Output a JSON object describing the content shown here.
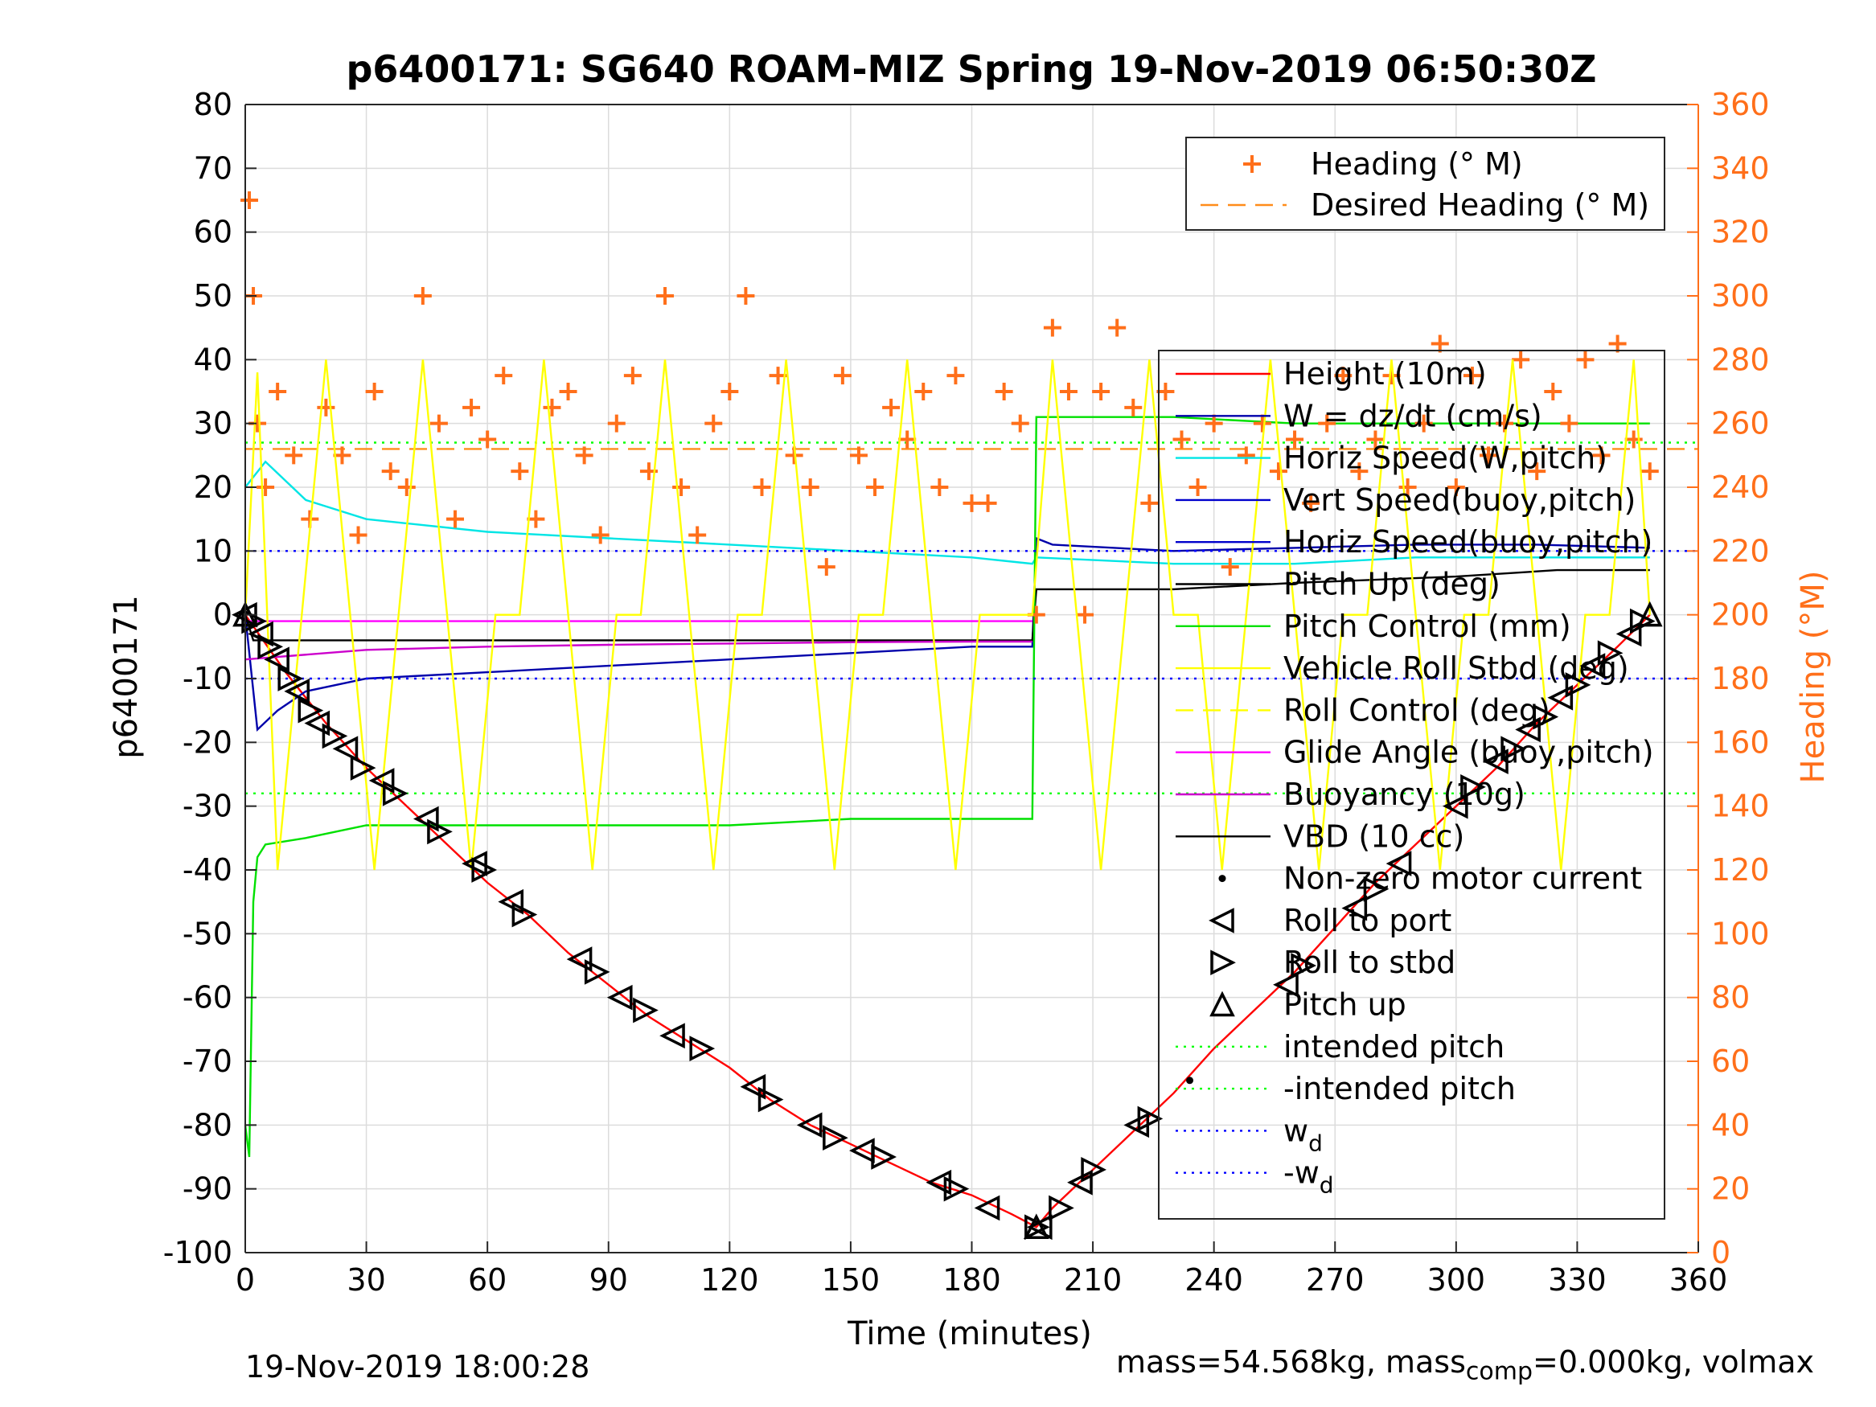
{
  "chart_data": {
    "type": "line",
    "title": "p6400171: SG640 ROAM-MIZ Spring 19-Nov-2019 06:50:30Z",
    "xlabel": "Time (minutes)",
    "ylabel_left": "p6400171",
    "ylabel_right": "Heading (°M)",
    "xlim": [
      0,
      360
    ],
    "ylim_left": [
      -100,
      80
    ],
    "ylim_right": [
      0,
      360
    ],
    "xticks": [
      0,
      30,
      60,
      90,
      120,
      150,
      180,
      210,
      240,
      270,
      300,
      330,
      360
    ],
    "yticks_left": [
      80,
      70,
      60,
      50,
      40,
      30,
      20,
      10,
      0,
      -10,
      -20,
      -30,
      -40,
      -50,
      -60,
      -70,
      -80,
      -90,
      -100
    ],
    "yticks_right": [
      360,
      340,
      320,
      300,
      280,
      260,
      240,
      220,
      200,
      180,
      160,
      140,
      120,
      100,
      80,
      60,
      40,
      20,
      0
    ],
    "grid": true,
    "legend_heading": {
      "placement": "top-right",
      "entries": [
        "Heading (° M)",
        "Desired Heading (° M)"
      ]
    },
    "legend_main": {
      "placement": "right",
      "entries": [
        "Height (10m)",
        "W = dz/dt (cm/s)",
        "Horiz Speed(W,pitch)",
        "Vert Speed(buoy,pitch)",
        "Horiz Speed(buoy,pitch)",
        "Pitch Up (deg)",
        "Pitch Control (mm)",
        "Vehicle Roll Stbd (deg)",
        "Roll Control (deg)",
        "Glide Angle (buoy,pitch)",
        "Buoyancy (10g)",
        "VBD (10 cc)",
        "Non-zero motor current",
        "Roll to port",
        "Roll to stbd",
        "Pitch up",
        "intended pitch",
        "-intended pitch",
        "w",
        "-w"
      ],
      "subscripts": {
        "18": "d",
        "19": "d"
      }
    },
    "series": [
      {
        "name": "Height (10m)",
        "color": "#ff0000",
        "x": [
          0,
          10,
          20,
          30,
          40,
          50,
          60,
          70,
          80,
          90,
          100,
          110,
          120,
          130,
          140,
          150,
          160,
          170,
          180,
          190,
          196,
          200,
          210,
          220,
          230,
          240,
          250,
          260,
          270,
          280,
          290,
          300,
          310,
          320,
          330,
          340,
          348
        ],
        "y": [
          0,
          -9,
          -17,
          -24,
          -30,
          -36,
          -42,
          -47,
          -53,
          -58,
          -63,
          -67,
          -71,
          -76,
          -80,
          -83,
          -86,
          -89,
          -91,
          -94,
          -96,
          -93,
          -87,
          -81,
          -75,
          -68,
          -62,
          -56,
          -49,
          -42,
          -36,
          -30,
          -24,
          -17,
          -11,
          -5,
          0
        ]
      },
      {
        "name": "W = dz/dt (cm/s)",
        "color": "#0000aa",
        "x": [
          0,
          3,
          8,
          15,
          30,
          60,
          90,
          120,
          150,
          180,
          195,
          196,
          200,
          230,
          260,
          290,
          320,
          348
        ],
        "y": [
          0,
          -18,
          -15,
          -12,
          -10,
          -9,
          -8,
          -7,
          -6,
          -5,
          -5,
          12,
          11,
          10,
          10.5,
          11,
          11,
          10.5
        ]
      },
      {
        "name": "Horiz Speed(W,pitch)",
        "color": "#00e5e5",
        "x": [
          0,
          5,
          15,
          30,
          60,
          90,
          120,
          150,
          180,
          195,
          196,
          230,
          260,
          290,
          320,
          348
        ],
        "y": [
          20,
          24,
          18,
          15,
          13,
          12,
          11,
          10,
          9,
          8,
          9,
          8,
          8,
          9,
          9,
          9
        ]
      },
      {
        "name": "Pitch Up (deg)",
        "color": "#000000",
        "x": [
          0,
          2,
          5,
          195,
          196,
          230,
          260,
          300,
          325,
          348
        ],
        "y": [
          0,
          -4,
          -4,
          -4,
          4,
          4,
          5,
          6,
          7,
          7
        ]
      },
      {
        "name": "Pitch Control (mm)",
        "color": "#00e000",
        "x": [
          0,
          1,
          2,
          3,
          5,
          15,
          30,
          60,
          90,
          120,
          150,
          180,
          195,
          196,
          200,
          230,
          260,
          290,
          320,
          348
        ],
        "y": [
          -80,
          -85,
          -45,
          -38,
          -36,
          -35,
          -33,
          -33,
          -33,
          -33,
          -32,
          -32,
          -32,
          31,
          31,
          31,
          30,
          30,
          30,
          30
        ]
      },
      {
        "name": "Glide Angle (buoy,pitch)",
        "color": "#ff00ff",
        "x": [
          0,
          195
        ],
        "y": [
          -1,
          -1
        ]
      },
      {
        "name": "Buoyancy (10g)",
        "color": "#cc00cc",
        "x": [
          0,
          30,
          60,
          90,
          120,
          150,
          180,
          195
        ],
        "y": [
          -7,
          -5.5,
          -5,
          -4.7,
          -4.5,
          -4.3,
          -4.2,
          -4.2
        ]
      },
      {
        "name": "intended pitch",
        "color": "#00ff00",
        "style": "dotted",
        "x": [
          0,
          360
        ],
        "y": [
          27,
          27
        ]
      },
      {
        "name": "-intended pitch",
        "color": "#00ff00",
        "style": "dotted",
        "x": [
          0,
          360
        ],
        "y": [
          -28,
          -28
        ]
      },
      {
        "name": "w",
        "color": "#0000ff",
        "style": "dotted",
        "x": [
          0,
          360
        ],
        "y": [
          10,
          10
        ]
      },
      {
        "name": "-w",
        "color": "#0000ff",
        "style": "dotted",
        "x": [
          0,
          360
        ],
        "y": [
          -10,
          -10
        ]
      },
      {
        "name": "Desired Heading (° M)",
        "color": "#ff8c1a",
        "style": "dashed",
        "axis": "right",
        "x": [
          0,
          360
        ],
        "y": [
          252,
          252
        ]
      },
      {
        "name": "Heading (° M)",
        "color": "#ff6f1a",
        "marker": "plus",
        "axis": "right",
        "x": [
          1,
          2,
          3,
          5,
          8,
          12,
          16,
          20,
          24,
          28,
          32,
          36,
          40,
          44,
          48,
          52,
          56,
          60,
          64,
          68,
          72,
          76,
          80,
          84,
          88,
          92,
          96,
          100,
          104,
          108,
          112,
          116,
          120,
          124,
          128,
          132,
          136,
          140,
          144,
          148,
          152,
          156,
          160,
          164,
          168,
          172,
          176,
          180,
          184,
          188,
          192,
          196,
          200,
          204,
          208,
          212,
          216,
          220,
          224,
          228,
          232,
          236,
          240,
          244,
          248,
          252,
          256,
          260,
          264,
          268,
          272,
          276,
          280,
          284,
          288,
          292,
          296,
          300,
          304,
          308,
          312,
          316,
          320,
          324,
          328,
          332,
          336,
          340,
          344,
          348
        ],
        "y": [
          330,
          300,
          260,
          240,
          270,
          250,
          230,
          265,
          250,
          225,
          270,
          245,
          240,
          300,
          260,
          230,
          265,
          255,
          275,
          245,
          230,
          265,
          270,
          250,
          225,
          260,
          275,
          245,
          300,
          240,
          225,
          260,
          270,
          300,
          240,
          275,
          250,
          240,
          215,
          275,
          250,
          240,
          265,
          255,
          270,
          240,
          275,
          235,
          235,
          270,
          260,
          200,
          290,
          270,
          200,
          270,
          290,
          265,
          235,
          270,
          255,
          240,
          260,
          215,
          250,
          260,
          245,
          255,
          235,
          260,
          275,
          245,
          255,
          275,
          240,
          260,
          285,
          240,
          275,
          250,
          260,
          280,
          245,
          270,
          260,
          280,
          250,
          285,
          255,
          245
        ]
      },
      {
        "name": "Vehicle Roll Stbd (deg)",
        "color": "#ffff00",
        "x": [
          0,
          3,
          8,
          14,
          20,
          26,
          32,
          38,
          44,
          50,
          56,
          62,
          68,
          74,
          80,
          86,
          92,
          98,
          104,
          110,
          116,
          122,
          128,
          134,
          140,
          146,
          152,
          158,
          164,
          170,
          176,
          182,
          188,
          195,
          200,
          206,
          212,
          218,
          224,
          230,
          236,
          242,
          248,
          254,
          260,
          266,
          272,
          278,
          284,
          290,
          296,
          302,
          308,
          314,
          320,
          326,
          332,
          338,
          344,
          348
        ],
        "y": [
          0,
          38,
          -40,
          0,
          40,
          0,
          -40,
          0,
          40,
          0,
          -40,
          0,
          0,
          40,
          0,
          -40,
          0,
          0,
          40,
          0,
          -40,
          0,
          0,
          40,
          0,
          -40,
          0,
          0,
          40,
          0,
          -40,
          0,
          0,
          0,
          40,
          0,
          -40,
          0,
          40,
          0,
          0,
          -40,
          0,
          40,
          0,
          -40,
          0,
          0,
          40,
          0,
          -40,
          0,
          0,
          40,
          0,
          -40,
          0,
          0,
          40,
          0
        ]
      },
      {
        "name": "Non-zero motor current",
        "color": "#000000",
        "marker": "dot",
        "x": [
          234
        ],
        "y": [
          -73
        ]
      },
      {
        "name": "Roll to port",
        "color": "#000000",
        "marker": "triangle-left",
        "x": [
          0,
          4,
          8,
          13,
          18,
          25,
          34,
          45,
          57,
          66,
          83,
          93,
          106,
          126,
          140,
          153,
          172,
          184,
          197,
          207,
          221,
          258,
          275,
          286,
          300,
          310,
          318,
          326,
          334,
          343
        ],
        "y": [
          0,
          -3,
          -7,
          -12,
          -17,
          -21,
          -26,
          -32,
          -39,
          -45,
          -54,
          -60,
          -66,
          -74,
          -80,
          -84,
          -89,
          -93,
          -96,
          -89,
          -80,
          -58,
          -46,
          -39,
          -30,
          -23,
          -18,
          -13,
          -8,
          -3
        ]
      },
      {
        "name": "Roll to stbd",
        "color": "#000000",
        "marker": "triangle-right",
        "x": [
          2,
          6,
          11,
          16,
          22,
          29,
          37,
          48,
          59,
          69,
          87,
          99,
          113,
          130,
          146,
          158,
          176,
          196,
          202,
          210,
          224,
          262,
          280,
          304,
          314,
          322,
          330,
          338,
          346
        ],
        "y": [
          -1,
          -5,
          -10,
          -15,
          -19,
          -24,
          -28,
          -34,
          -40,
          -47,
          -56,
          -62,
          -68,
          -76,
          -82,
          -85,
          -90,
          -96,
          -93,
          -87,
          -79,
          -55,
          -43,
          -27,
          -21,
          -16,
          -11,
          -6,
          -1
        ]
      },
      {
        "name": "Pitch up",
        "color": "#000000",
        "marker": "triangle-up",
        "x": [
          0,
          196,
          348
        ],
        "y": [
          0,
          -96,
          0
        ]
      }
    ]
  },
  "footer": {
    "timestamp": "19-Nov-2019 18:00:28",
    "mass_text": "mass=54.568kg, mass",
    "mass_sub": "comp",
    "mass_rest": "=0.000kg, volmax"
  },
  "colors": {
    "heading_axis": "#ff6f1a"
  }
}
